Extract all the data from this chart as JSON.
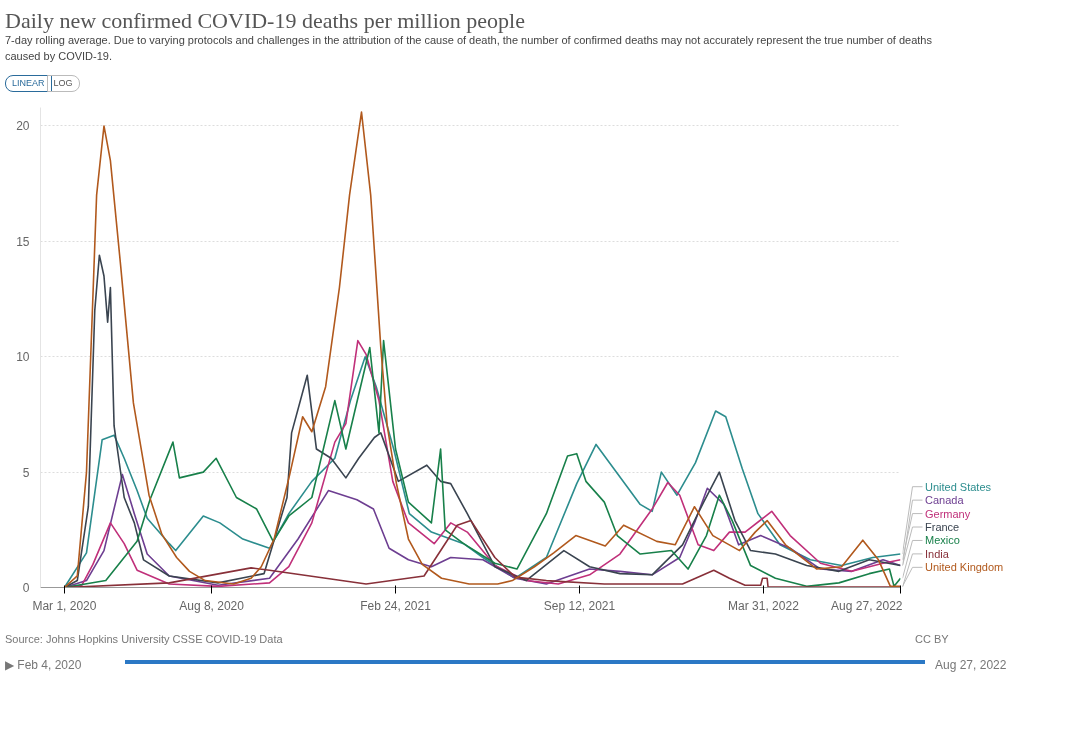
{
  "chart_data": {
    "type": "line",
    "title": "Daily new confirmed COVID-19 deaths per million people",
    "subtitle": "7-day rolling average. Due to varying protocols and challenges in the attribution of the cause of death, the number of confirmed deaths may not accurately represent the true number of deaths caused by COVID-19.",
    "annotations": [
      "Source: Johns Hopkins University CSSE COVID-19 Data",
      "CC BY",
      "LINEAR",
      "LOG",
      "▶ Feb 4, 2020",
      "Aug 27, 2022"
    ],
    "xlim": [
      "2020-02-04",
      "2022-08-27"
    ],
    "xticks": [
      {
        "value": "2020-03-01",
        "label": "Mar 1, 2020"
      },
      {
        "value": "2020-08-08",
        "label": "Aug 8, 2020"
      },
      {
        "value": "2021-02-24",
        "label": "Feb 24, 2021"
      },
      {
        "value": "2021-09-12",
        "label": "Sep 12, 2021"
      },
      {
        "value": "2022-03-31",
        "label": "Mar 31, 2022"
      },
      {
        "value": "2022-08-27",
        "label": "Aug 27, 2022"
      }
    ],
    "ylim": [
      0,
      20.8
    ],
    "yticks": [
      0,
      5,
      10,
      15,
      20
    ],
    "grid": "y",
    "marker": "none",
    "line_style": "solid",
    "series": [
      {
        "name": "United States",
        "color": "#2c8d8e",
        "x": [
          "2020-03-01",
          "2020-03-25",
          "2020-04-11",
          "2020-04-24",
          "2020-05-05",
          "2020-05-19",
          "2020-05-30",
          "2020-06-23",
          "2020-06-30",
          "2020-07-30",
          "2020-08-17",
          "2020-09-11",
          "2020-10-10",
          "2020-10-31",
          "2020-11-25",
          "2020-12-20",
          "2021-01-06",
          "2021-01-22",
          "2021-02-03",
          "2021-02-22",
          "2021-03-11",
          "2021-04-04",
          "2021-05-09",
          "2021-05-30",
          "2021-07-04",
          "2021-08-07",
          "2021-09-09",
          "2021-09-30",
          "2021-10-24",
          "2021-11-17",
          "2021-11-30",
          "2021-12-10",
          "2021-12-27",
          "2022-01-16",
          "2022-02-07",
          "2022-02-18",
          "2022-03-08",
          "2022-03-25",
          "2022-04-18",
          "2022-05-21",
          "2022-06-24",
          "2022-07-28",
          "2022-08-27"
        ],
        "values": [
          0,
          1.5,
          6.4,
          6.6,
          5.6,
          4.2,
          3.0,
          1.9,
          1.6,
          3.1,
          2.8,
          2.1,
          1.7,
          3.2,
          4.6,
          5.6,
          8.1,
          10.0,
          8.7,
          6.0,
          3.2,
          2.4,
          1.9,
          1.3,
          0.4,
          1.3,
          4.5,
          6.2,
          4.9,
          3.6,
          3.3,
          5.0,
          4.0,
          5.4,
          7.65,
          7.4,
          5.15,
          3.2,
          1.85,
          1.2,
          0.95,
          1.3,
          1.45
        ]
      },
      {
        "name": "Canada",
        "color": "#6d3e91",
        "x": [
          "2020-03-01",
          "2020-03-25",
          "2020-04-13",
          "2020-05-03",
          "2020-05-16",
          "2020-05-30",
          "2020-06-23",
          "2020-08-15",
          "2020-10-10",
          "2020-11-10",
          "2020-12-13",
          "2021-01-13",
          "2021-01-31",
          "2021-02-17",
          "2021-03-10",
          "2021-04-04",
          "2021-04-25",
          "2021-05-30",
          "2021-07-04",
          "2021-08-07",
          "2021-09-23",
          "2021-10-26",
          "2021-11-30",
          "2021-12-30",
          "2022-01-16",
          "2022-01-29",
          "2022-02-16",
          "2022-03-04",
          "2022-03-28",
          "2022-04-29",
          "2022-06-01",
          "2022-07-05",
          "2022-08-08",
          "2022-08-27"
        ],
        "values": [
          0,
          0.3,
          1.6,
          4.9,
          3.2,
          1.45,
          0.5,
          0.1,
          0.4,
          2.1,
          4.2,
          3.8,
          3.4,
          1.7,
          1.2,
          0.9,
          1.3,
          1.2,
          0.4,
          0.15,
          0.8,
          0.7,
          0.55,
          1.3,
          2.9,
          4.3,
          3.6,
          1.85,
          2.25,
          1.7,
          0.8,
          0.7,
          1.2,
          0.95
        ]
      },
      {
        "name": "Germany",
        "color": "#c0307a",
        "x": [
          "2020-03-01",
          "2020-03-20",
          "2020-04-01",
          "2020-04-20",
          "2020-05-05",
          "2020-05-19",
          "2020-06-23",
          "2020-08-15",
          "2020-10-10",
          "2020-10-31",
          "2020-11-25",
          "2020-12-20",
          "2021-01-01",
          "2021-01-14",
          "2021-01-23",
          "2021-02-06",
          "2021-02-21",
          "2021-03-10",
          "2021-04-07",
          "2021-04-25",
          "2021-05-13",
          "2021-06-12",
          "2021-07-16",
          "2021-08-20",
          "2021-09-23",
          "2021-10-26",
          "2021-11-30",
          "2021-12-17",
          "2021-12-30",
          "2022-01-19",
          "2022-02-05",
          "2022-02-22",
          "2022-03-11",
          "2022-04-09",
          "2022-04-29",
          "2022-06-01",
          "2022-07-05",
          "2022-08-08",
          "2022-08-27"
        ],
        "values": [
          0,
          0.1,
          1.0,
          2.8,
          1.9,
          0.75,
          0.15,
          0.05,
          0.2,
          0.9,
          2.8,
          6.3,
          7.1,
          10.7,
          10.1,
          8.1,
          4.6,
          2.8,
          1.9,
          2.8,
          2.4,
          0.95,
          0.3,
          0.15,
          0.55,
          1.45,
          3.4,
          4.55,
          4.0,
          1.85,
          1.6,
          2.4,
          2.4,
          3.3,
          2.25,
          1.05,
          0.7,
          1.05,
          1.2
        ]
      },
      {
        "name": "France",
        "color": "#3a4450",
        "x": [
          "2020-03-01",
          "2020-03-15",
          "2020-03-27",
          "2020-04-03",
          "2020-04-08",
          "2020-04-13",
          "2020-04-17",
          "2020-04-20",
          "2020-04-24",
          "2020-05-05",
          "2020-05-16",
          "2020-05-26",
          "2020-06-23",
          "2020-08-15",
          "2020-10-04",
          "2020-10-29",
          "2020-11-03",
          "2020-11-20",
          "2020-11-30",
          "2020-12-16",
          "2021-01-01",
          "2021-01-15",
          "2021-02-01",
          "2021-02-08",
          "2021-02-27",
          "2021-03-30",
          "2021-04-14",
          "2021-04-25",
          "2021-05-13",
          "2021-06-12",
          "2021-07-16",
          "2021-08-26",
          "2021-09-23",
          "2021-10-26",
          "2021-11-30",
          "2022-01-02",
          "2022-01-25",
          "2022-02-11",
          "2022-02-28",
          "2022-03-17",
          "2022-04-13",
          "2022-05-17",
          "2022-06-21",
          "2022-07-24",
          "2022-08-27"
        ],
        "values": [
          0,
          0.3,
          3.5,
          12,
          14.4,
          13.5,
          11.5,
          13,
          7,
          3.9,
          2.8,
          1.2,
          0.5,
          0.2,
          0.6,
          3.9,
          6.7,
          9.2,
          6,
          5.6,
          4.75,
          5.6,
          6.5,
          6.7,
          4.6,
          5.3,
          4.6,
          4.5,
          3.2,
          0.9,
          0.3,
          1.6,
          0.9,
          0.6,
          0.55,
          1.85,
          3.7,
          5.0,
          2.9,
          1.6,
          1.45,
          0.95,
          0.7,
          1.2,
          0.95
        ]
      },
      {
        "name": "Mexico",
        "color": "#18804a",
        "x": [
          "2020-03-01",
          "2020-04-15",
          "2020-05-19",
          "2020-06-02",
          "2020-06-27",
          "2020-07-04",
          "2020-07-30",
          "2020-08-13",
          "2020-09-04",
          "2020-09-26",
          "2020-10-14",
          "2020-10-31",
          "2020-11-25",
          "2020-12-20",
          "2021-01-01",
          "2021-01-27",
          "2021-02-06",
          "2021-02-11",
          "2021-02-24",
          "2021-03-10",
          "2021-04-04",
          "2021-04-14",
          "2021-04-19",
          "2021-05-09",
          "2021-06-12",
          "2021-07-06",
          "2021-08-07",
          "2021-08-30",
          "2021-09-09",
          "2021-09-19",
          "2021-10-09",
          "2021-10-23",
          "2021-11-17",
          "2021-12-21",
          "2022-01-08",
          "2022-01-28",
          "2022-02-11",
          "2022-02-25",
          "2022-03-17",
          "2022-04-13",
          "2022-05-17",
          "2022-06-21",
          "2022-07-24",
          "2022-08-15",
          "2022-08-20",
          "2022-08-27"
        ],
        "values": [
          0,
          0.3,
          2.0,
          3.8,
          6.3,
          4.75,
          5.0,
          5.6,
          3.9,
          3.4,
          2.0,
          3.1,
          3.9,
          8.1,
          6.0,
          10.4,
          6.7,
          10.7,
          6.0,
          3.7,
          2.8,
          6.0,
          2.5,
          1.9,
          1.05,
          0.8,
          3.2,
          5.7,
          5.8,
          4.6,
          3.7,
          2.25,
          1.45,
          1.6,
          0.8,
          2.25,
          4.0,
          2.9,
          0.95,
          0.4,
          0.05,
          0.2,
          0.6,
          0.8,
          0.05,
          0.4
        ]
      },
      {
        "name": "India",
        "color": "#883039",
        "x": [
          "2020-03-01",
          "2020-06-23",
          "2020-09-20",
          "2020-10-10",
          "2021-01-23",
          "2021-03-27",
          "2021-05-02",
          "2021-05-17",
          "2021-06-12",
          "2021-07-04",
          "2021-08-07",
          "2021-10-09",
          "2021-11-30",
          "2022-01-02",
          "2022-02-05",
          "2022-02-22",
          "2022-03-11",
          "2022-03-28",
          "2022-03-30",
          "2022-04-04",
          "2022-04-05",
          "2022-08-27"
        ],
        "values": [
          0,
          0.2,
          0.85,
          0.75,
          0.15,
          0.5,
          2.7,
          2.9,
          1.3,
          0.45,
          0.3,
          0.15,
          0.15,
          0.15,
          0.75,
          0.4,
          0.1,
          0.1,
          0.4,
          0.4,
          0.02,
          0.02
        ]
      },
      {
        "name": "United Kingdom",
        "color": "#b1591d",
        "x": [
          "2020-03-01",
          "2020-03-15",
          "2020-03-25",
          "2020-04-05",
          "2020-04-13",
          "2020-04-20",
          "2020-05-01",
          "2020-05-15",
          "2020-06-01",
          "2020-06-15",
          "2020-07-01",
          "2020-07-15",
          "2020-08-01",
          "2020-09-01",
          "2020-09-20",
          "2020-10-01",
          "2020-10-15",
          "2020-11-01",
          "2020-11-15",
          "2020-11-25",
          "2020-12-10",
          "2020-12-25",
          "2021-01-05",
          "2021-01-18",
          "2021-01-28",
          "2021-02-08",
          "2021-02-15",
          "2021-02-25",
          "2021-03-10",
          "2021-03-25",
          "2021-04-15",
          "2021-05-15",
          "2021-06-15",
          "2021-07-01",
          "2021-07-25",
          "2021-08-15",
          "2021-09-08",
          "2021-10-10",
          "2021-10-30",
          "2021-12-05",
          "2021-12-25",
          "2022-01-15",
          "2022-02-04",
          "2022-03-05",
          "2022-03-22",
          "2022-04-04",
          "2022-04-24",
          "2022-05-28",
          "2022-06-24",
          "2022-07-17",
          "2022-08-03",
          "2022-08-16",
          "2022-08-27"
        ],
        "values": [
          0,
          0.5,
          5,
          17,
          20.0,
          18.5,
          14,
          8,
          4,
          2.3,
          1.3,
          0.7,
          0.3,
          0.15,
          0.4,
          0.9,
          2.1,
          4.9,
          7.4,
          6.75,
          8.7,
          13,
          17,
          20.6,
          17,
          10.4,
          7,
          4.5,
          2.1,
          1,
          0.4,
          0.15,
          0.15,
          0.3,
          0.9,
          1.5,
          2.25,
          1.8,
          2.7,
          2.0,
          1.85,
          3.5,
          2.25,
          1.6,
          2.4,
          2.9,
          1.85,
          0.8,
          0.9,
          2.05,
          1.2,
          0.05,
          0.05
        ]
      }
    ]
  }
}
